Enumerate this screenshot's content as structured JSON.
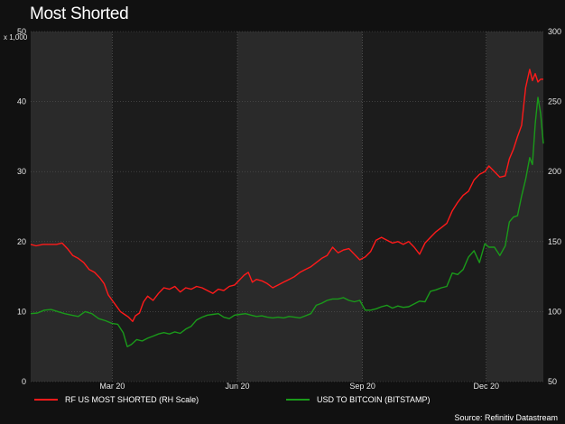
{
  "chart_data": {
    "type": "line",
    "title": "Most Shorted",
    "source": "Source: Refinitiv Datastream",
    "left_axis": {
      "unit_label": "x 1,000",
      "ylim": [
        0,
        50
      ],
      "ticks": [
        "0",
        "10",
        "20",
        "30",
        "40",
        "50"
      ],
      "tick_values": [
        0,
        10,
        20,
        30,
        40,
        50
      ]
    },
    "right_axis": {
      "ylim": [
        50,
        300
      ],
      "ticks": [
        "50",
        "100",
        "150",
        "200",
        "250",
        "300"
      ],
      "tick_values": [
        50,
        100,
        150,
        200,
        250,
        300
      ]
    },
    "x_axis": {
      "range": [
        "2020-01-01",
        "2021-01-12"
      ],
      "ticks": [
        {
          "label": "Mar 20",
          "date": "2020-03-01"
        },
        {
          "label": "Jun 20",
          "date": "2020-06-01"
        },
        {
          "label": "Sep 20",
          "date": "2020-09-01"
        },
        {
          "label": "Dec 20",
          "date": "2020-12-01"
        }
      ]
    },
    "grid": true,
    "legend_position": "bottom",
    "series": [
      {
        "name": "RF US MOST SHORTED (RH Scale)",
        "color": "#ff1a1a",
        "axis": "right",
        "points": [
          [
            "2020-01-01",
            148
          ],
          [
            "2020-01-05",
            147
          ],
          [
            "2020-01-10",
            148
          ],
          [
            "2020-01-15",
            148
          ],
          [
            "2020-01-20",
            148
          ],
          [
            "2020-01-24",
            149
          ],
          [
            "2020-01-28",
            145
          ],
          [
            "2020-02-01",
            140
          ],
          [
            "2020-02-05",
            138
          ],
          [
            "2020-02-09",
            135
          ],
          [
            "2020-02-13",
            130
          ],
          [
            "2020-02-17",
            128
          ],
          [
            "2020-02-21",
            124
          ],
          [
            "2020-02-24",
            120
          ],
          [
            "2020-02-27",
            112
          ],
          [
            "2020-03-01",
            108
          ],
          [
            "2020-03-04",
            104
          ],
          [
            "2020-03-07",
            100
          ],
          [
            "2020-03-10",
            98
          ],
          [
            "2020-03-13",
            96
          ],
          [
            "2020-03-16",
            93
          ],
          [
            "2020-03-18",
            97
          ],
          [
            "2020-03-21",
            99
          ],
          [
            "2020-03-24",
            107
          ],
          [
            "2020-03-27",
            111
          ],
          [
            "2020-03-31",
            108
          ],
          [
            "2020-04-04",
            113
          ],
          [
            "2020-04-08",
            117
          ],
          [
            "2020-04-12",
            116
          ],
          [
            "2020-04-16",
            118
          ],
          [
            "2020-04-20",
            114
          ],
          [
            "2020-04-24",
            117
          ],
          [
            "2020-04-28",
            116
          ],
          [
            "2020-05-02",
            118
          ],
          [
            "2020-05-06",
            117
          ],
          [
            "2020-05-10",
            115
          ],
          [
            "2020-05-14",
            113
          ],
          [
            "2020-05-18",
            116
          ],
          [
            "2020-05-22",
            115
          ],
          [
            "2020-05-26",
            118
          ],
          [
            "2020-05-30",
            119
          ],
          [
            "2020-06-03",
            123
          ],
          [
            "2020-06-06",
            126
          ],
          [
            "2020-06-09",
            128
          ],
          [
            "2020-06-12",
            121
          ],
          [
            "2020-06-15",
            123
          ],
          [
            "2020-06-19",
            122
          ],
          [
            "2020-06-23",
            120
          ],
          [
            "2020-06-27",
            117
          ],
          [
            "2020-07-01",
            119
          ],
          [
            "2020-07-05",
            121
          ],
          [
            "2020-07-09",
            123
          ],
          [
            "2020-07-13",
            125
          ],
          [
            "2020-07-17",
            128
          ],
          [
            "2020-07-21",
            130
          ],
          [
            "2020-07-25",
            132
          ],
          [
            "2020-07-29",
            135
          ],
          [
            "2020-08-02",
            138
          ],
          [
            "2020-08-06",
            140
          ],
          [
            "2020-08-10",
            146
          ],
          [
            "2020-08-14",
            142
          ],
          [
            "2020-08-18",
            144
          ],
          [
            "2020-08-22",
            145
          ],
          [
            "2020-08-26",
            141
          ],
          [
            "2020-08-30",
            137
          ],
          [
            "2020-09-03",
            139
          ],
          [
            "2020-09-07",
            143
          ],
          [
            "2020-09-11",
            151
          ],
          [
            "2020-09-15",
            153
          ],
          [
            "2020-09-19",
            151
          ],
          [
            "2020-09-23",
            149
          ],
          [
            "2020-09-27",
            150
          ],
          [
            "2020-10-01",
            148
          ],
          [
            "2020-10-05",
            150
          ],
          [
            "2020-10-09",
            146
          ],
          [
            "2020-10-13",
            141
          ],
          [
            "2020-10-17",
            149
          ],
          [
            "2020-10-21",
            153
          ],
          [
            "2020-10-25",
            157
          ],
          [
            "2020-10-29",
            160
          ],
          [
            "2020-11-02",
            163
          ],
          [
            "2020-11-06",
            172
          ],
          [
            "2020-11-10",
            178
          ],
          [
            "2020-11-14",
            183
          ],
          [
            "2020-11-18",
            186
          ],
          [
            "2020-11-22",
            194
          ],
          [
            "2020-11-26",
            198
          ],
          [
            "2020-11-30",
            200
          ],
          [
            "2020-12-03",
            204
          ],
          [
            "2020-12-07",
            200
          ],
          [
            "2020-12-11",
            196
          ],
          [
            "2020-12-15",
            197
          ],
          [
            "2020-12-18",
            209
          ],
          [
            "2020-12-21",
            216
          ],
          [
            "2020-12-24",
            225
          ],
          [
            "2020-12-27",
            233
          ],
          [
            "2020-12-30",
            260
          ],
          [
            "2021-01-02",
            273
          ],
          [
            "2021-01-04",
            265
          ],
          [
            "2021-01-06",
            270
          ],
          [
            "2021-01-08",
            264
          ],
          [
            "2021-01-10",
            266
          ],
          [
            "2021-01-12",
            266
          ]
        ]
      },
      {
        "name": "USD TO BITCOIN (BITSTAMP)",
        "color": "#1a9a1a",
        "axis": "left",
        "points": [
          [
            "2020-01-01",
            9.7
          ],
          [
            "2020-01-06",
            9.8
          ],
          [
            "2020-01-11",
            10.2
          ],
          [
            "2020-01-16",
            10.3
          ],
          [
            "2020-01-21",
            10.0
          ],
          [
            "2020-01-26",
            9.7
          ],
          [
            "2020-01-31",
            9.5
          ],
          [
            "2020-02-05",
            9.3
          ],
          [
            "2020-02-10",
            10.0
          ],
          [
            "2020-02-15",
            9.7
          ],
          [
            "2020-02-20",
            9.0
          ],
          [
            "2020-02-25",
            8.7
          ],
          [
            "2020-03-01",
            8.3
          ],
          [
            "2020-03-05",
            8.2
          ],
          [
            "2020-03-09",
            7.0
          ],
          [
            "2020-03-12",
            5.0
          ],
          [
            "2020-03-15",
            5.3
          ],
          [
            "2020-03-19",
            6.0
          ],
          [
            "2020-03-23",
            5.8
          ],
          [
            "2020-03-27",
            6.2
          ],
          [
            "2020-03-31",
            6.5
          ],
          [
            "2020-04-04",
            6.8
          ],
          [
            "2020-04-08",
            7.0
          ],
          [
            "2020-04-12",
            6.8
          ],
          [
            "2020-04-16",
            7.1
          ],
          [
            "2020-04-20",
            6.9
          ],
          [
            "2020-04-24",
            7.5
          ],
          [
            "2020-04-28",
            7.9
          ],
          [
            "2020-05-02",
            8.8
          ],
          [
            "2020-05-06",
            9.2
          ],
          [
            "2020-05-10",
            9.5
          ],
          [
            "2020-05-14",
            9.6
          ],
          [
            "2020-05-18",
            9.7
          ],
          [
            "2020-05-22",
            9.2
          ],
          [
            "2020-05-26",
            9.0
          ],
          [
            "2020-05-30",
            9.5
          ],
          [
            "2020-06-03",
            9.6
          ],
          [
            "2020-06-07",
            9.7
          ],
          [
            "2020-06-11",
            9.5
          ],
          [
            "2020-06-15",
            9.3
          ],
          [
            "2020-06-19",
            9.4
          ],
          [
            "2020-06-23",
            9.2
          ],
          [
            "2020-06-27",
            9.1
          ],
          [
            "2020-07-01",
            9.2
          ],
          [
            "2020-07-05",
            9.1
          ],
          [
            "2020-07-09",
            9.3
          ],
          [
            "2020-07-13",
            9.2
          ],
          [
            "2020-07-17",
            9.1
          ],
          [
            "2020-07-21",
            9.4
          ],
          [
            "2020-07-25",
            9.7
          ],
          [
            "2020-07-29",
            10.9
          ],
          [
            "2020-08-02",
            11.2
          ],
          [
            "2020-08-06",
            11.6
          ],
          [
            "2020-08-10",
            11.8
          ],
          [
            "2020-08-14",
            11.8
          ],
          [
            "2020-08-18",
            12.0
          ],
          [
            "2020-08-22",
            11.6
          ],
          [
            "2020-08-26",
            11.4
          ],
          [
            "2020-08-30",
            11.6
          ],
          [
            "2020-09-03",
            10.2
          ],
          [
            "2020-09-07",
            10.2
          ],
          [
            "2020-09-11",
            10.4
          ],
          [
            "2020-09-15",
            10.7
          ],
          [
            "2020-09-19",
            10.9
          ],
          [
            "2020-09-23",
            10.5
          ],
          [
            "2020-09-27",
            10.8
          ],
          [
            "2020-10-01",
            10.6
          ],
          [
            "2020-10-05",
            10.7
          ],
          [
            "2020-10-09",
            11.1
          ],
          [
            "2020-10-13",
            11.5
          ],
          [
            "2020-10-17",
            11.4
          ],
          [
            "2020-10-21",
            12.9
          ],
          [
            "2020-10-25",
            13.1
          ],
          [
            "2020-10-29",
            13.4
          ],
          [
            "2020-11-02",
            13.6
          ],
          [
            "2020-11-06",
            15.5
          ],
          [
            "2020-11-10",
            15.3
          ],
          [
            "2020-11-14",
            16.0
          ],
          [
            "2020-11-18",
            17.8
          ],
          [
            "2020-11-22",
            18.7
          ],
          [
            "2020-11-26",
            17.0
          ],
          [
            "2020-11-30",
            19.7
          ],
          [
            "2020-12-03",
            19.2
          ],
          [
            "2020-12-07",
            19.2
          ],
          [
            "2020-12-11",
            18.0
          ],
          [
            "2020-12-15",
            19.4
          ],
          [
            "2020-12-18",
            22.8
          ],
          [
            "2020-12-21",
            23.5
          ],
          [
            "2020-12-24",
            23.7
          ],
          [
            "2020-12-27",
            26.5
          ],
          [
            "2020-12-30",
            28.9
          ],
          [
            "2021-01-02",
            32.0
          ],
          [
            "2021-01-04",
            31.0
          ],
          [
            "2021-01-06",
            36.8
          ],
          [
            "2021-01-08",
            40.6
          ],
          [
            "2021-01-10",
            38.3
          ],
          [
            "2021-01-12",
            34.0
          ]
        ]
      }
    ]
  }
}
